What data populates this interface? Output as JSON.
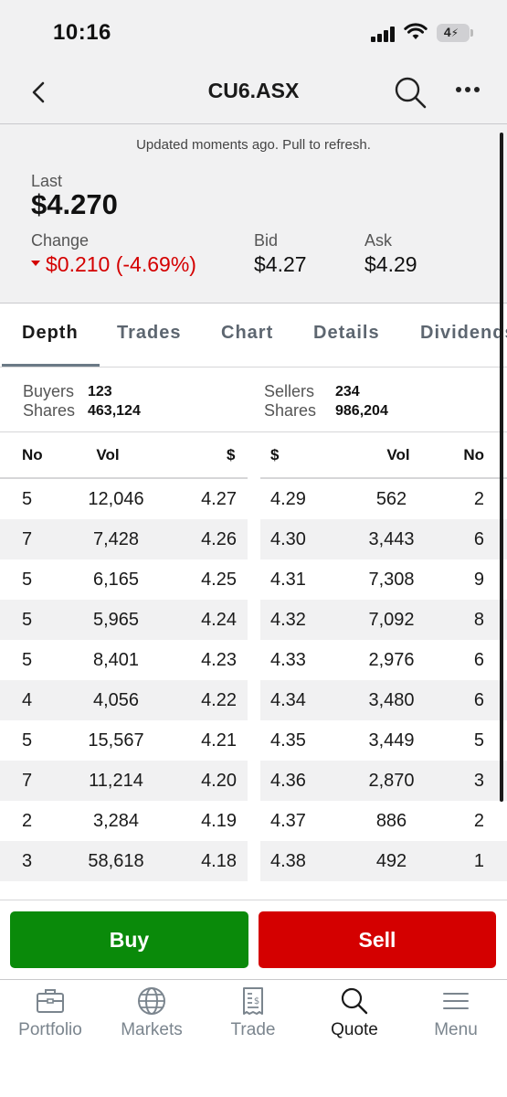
{
  "status_bar": {
    "time": "10:16",
    "battery": "4"
  },
  "header": {
    "title": "CU6.ASX"
  },
  "quote": {
    "updated_text": "Updated moments ago. Pull to refresh.",
    "last_label": "Last",
    "last_value": "$4.270",
    "change_label": "Change",
    "change_value": "$0.210 (-4.69%)",
    "bid_label": "Bid",
    "bid_value": "$4.27",
    "ask_label": "Ask",
    "ask_value": "$4.29",
    "change_color": "#d40000"
  },
  "tabs": [
    {
      "label": "Depth",
      "active": true
    },
    {
      "label": "Trades",
      "active": false
    },
    {
      "label": "Chart",
      "active": false
    },
    {
      "label": "Details",
      "active": false
    },
    {
      "label": "Dividends",
      "active": false
    }
  ],
  "summary": {
    "buyers_label": "Buyers",
    "buyers_value": "123",
    "buyers_shares_label": "Shares",
    "buyers_shares_value": "463,124",
    "sellers_label": "Sellers",
    "sellers_value": "234",
    "sellers_shares_label": "Shares",
    "sellers_shares_value": "986,204"
  },
  "depth_table": {
    "buy_headers": {
      "no": "No",
      "vol": "Vol",
      "price": "$"
    },
    "sell_headers": {
      "price": "$",
      "vol": "Vol",
      "no": "No"
    },
    "rows": [
      {
        "buy_no": "5",
        "buy_vol": "12,046",
        "buy_price": "4.27",
        "sell_price": "4.29",
        "sell_vol": "562",
        "sell_no": "2"
      },
      {
        "buy_no": "7",
        "buy_vol": "7,428",
        "buy_price": "4.26",
        "sell_price": "4.30",
        "sell_vol": "3,443",
        "sell_no": "6"
      },
      {
        "buy_no": "5",
        "buy_vol": "6,165",
        "buy_price": "4.25",
        "sell_price": "4.31",
        "sell_vol": "7,308",
        "sell_no": "9"
      },
      {
        "buy_no": "5",
        "buy_vol": "5,965",
        "buy_price": "4.24",
        "sell_price": "4.32",
        "sell_vol": "7,092",
        "sell_no": "8"
      },
      {
        "buy_no": "5",
        "buy_vol": "8,401",
        "buy_price": "4.23",
        "sell_price": "4.33",
        "sell_vol": "2,976",
        "sell_no": "6"
      },
      {
        "buy_no": "4",
        "buy_vol": "4,056",
        "buy_price": "4.22",
        "sell_price": "4.34",
        "sell_vol": "3,480",
        "sell_no": "6"
      },
      {
        "buy_no": "5",
        "buy_vol": "15,567",
        "buy_price": "4.21",
        "sell_price": "4.35",
        "sell_vol": "3,449",
        "sell_no": "5"
      },
      {
        "buy_no": "7",
        "buy_vol": "11,214",
        "buy_price": "4.20",
        "sell_price": "4.36",
        "sell_vol": "2,870",
        "sell_no": "3"
      },
      {
        "buy_no": "2",
        "buy_vol": "3,284",
        "buy_price": "4.19",
        "sell_price": "4.37",
        "sell_vol": "886",
        "sell_no": "2"
      },
      {
        "buy_no": "3",
        "buy_vol": "58,618",
        "buy_price": "4.18",
        "sell_price": "4.38",
        "sell_vol": "492",
        "sell_no": "1"
      }
    ]
  },
  "actions": {
    "buy_label": "Buy",
    "sell_label": "Sell",
    "buy_color": "#0a8a0a",
    "sell_color": "#d40000"
  },
  "bottom_nav": [
    {
      "label": "Portfolio",
      "icon": "briefcase-icon",
      "active": false
    },
    {
      "label": "Markets",
      "icon": "globe-icon",
      "active": false
    },
    {
      "label": "Trade",
      "icon": "receipt-icon",
      "active": false
    },
    {
      "label": "Quote",
      "icon": "search-icon",
      "active": true
    },
    {
      "label": "Menu",
      "icon": "hamburger-icon",
      "active": false
    }
  ]
}
